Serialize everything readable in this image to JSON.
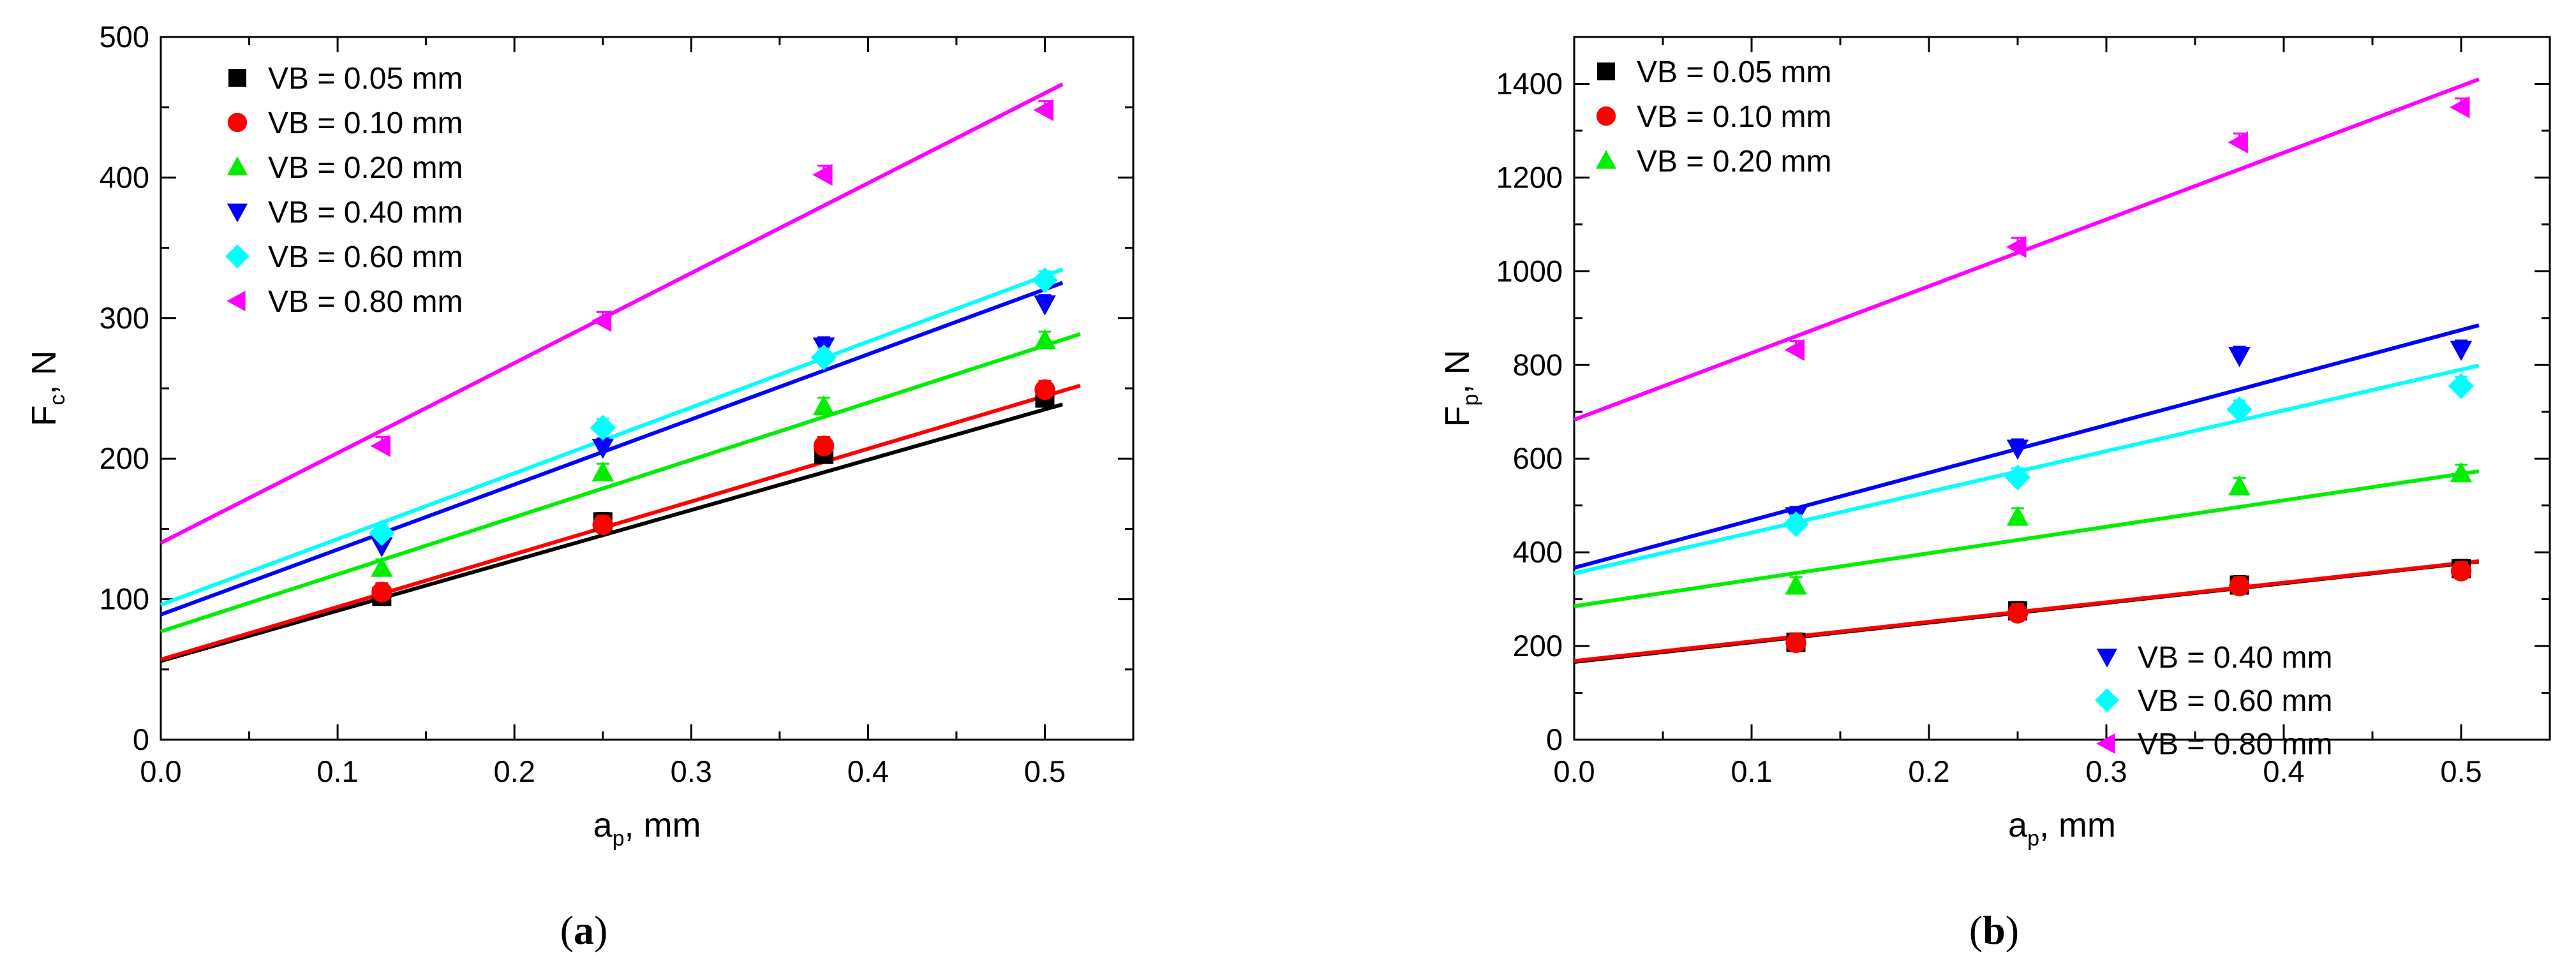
{
  "chart_data": [
    {
      "type": "scatter",
      "panel_label_open": "(",
      "panel_label_letter": "a",
      "panel_label_close": ")",
      "ylabel_main": "F",
      "ylabel_sub": "c",
      "ylabel_unit": ", N",
      "xlabel_main": "a",
      "xlabel_sub": "p",
      "xlabel_unit": ", mm",
      "xlim": [
        0.0,
        0.55
      ],
      "ylim": [
        0,
        500
      ],
      "x_ticks": [
        0.0,
        0.1,
        0.2,
        0.3,
        0.4,
        0.5
      ],
      "x_tick_labels": [
        "0.0",
        "0.1",
        "0.2",
        "0.3",
        "0.4",
        "0.5"
      ],
      "y_ticks": [
        0,
        100,
        200,
        300,
        400,
        500
      ],
      "y_tick_labels": [
        "0",
        "100",
        "200",
        "300",
        "400",
        "500"
      ],
      "grid": false,
      "legend_position": "top-left",
      "x": [
        0.125,
        0.25,
        0.375,
        0.5
      ],
      "series": [
        {
          "name": "VB = 0.05 mm",
          "color": "#000000",
          "marker": "square",
          "values": [
            102,
            155,
            203,
            243
          ],
          "fit": {
            "intercept": 56,
            "slope": 358,
            "x_end": 0.51
          },
          "legend_group": 0
        },
        {
          "name": "VB = 0.10 mm",
          "color": "#ff0000",
          "marker": "circle",
          "values": [
            105,
            153,
            209,
            249
          ],
          "fit": {
            "intercept": 57,
            "slope": 375,
            "x_end": 0.52
          },
          "legend_group": 0
        },
        {
          "name": "VB = 0.20 mm",
          "color": "#00ee00",
          "marker": "triangle-up",
          "values": [
            122,
            190,
            237,
            284
          ],
          "fit": {
            "intercept": 77,
            "slope": 407,
            "x_end": 0.52
          },
          "legend_group": 0
        },
        {
          "name": "VB = 0.40 mm",
          "color": "#0000ff",
          "marker": "triangle-down",
          "values": [
            138,
            208,
            280,
            310
          ],
          "fit": {
            "intercept": 89,
            "slope": 463,
            "x_end": 0.51
          },
          "legend_group": 0
        },
        {
          "name": "VB = 0.60 mm",
          "color": "#00ffff",
          "marker": "diamond",
          "values": [
            147,
            222,
            272,
            327
          ],
          "fit": {
            "intercept": 96,
            "slope": 468,
            "x_end": 0.51
          },
          "legend_group": 0
        },
        {
          "name": "VB = 0.80 mm",
          "color": "#ff00ff",
          "marker": "triangle-left",
          "values": [
            209,
            298,
            402,
            448
          ],
          "fit": {
            "intercept": 140,
            "slope": 640,
            "x_end": 0.51
          },
          "legend_group": 0
        }
      ]
    },
    {
      "type": "scatter",
      "panel_label_open": "(",
      "panel_label_letter": "b",
      "panel_label_close": ")",
      "ylabel_main": "F",
      "ylabel_sub": "p",
      "ylabel_unit": ", N",
      "xlabel_main": "a",
      "xlabel_sub": "p",
      "xlabel_unit": ", mm",
      "xlim": [
        0.0,
        0.55
      ],
      "ylim": [
        0,
        1500
      ],
      "x_ticks": [
        0.0,
        0.1,
        0.2,
        0.3,
        0.4,
        0.5
      ],
      "x_tick_labels": [
        "0.0",
        "0.1",
        "0.2",
        "0.3",
        "0.4",
        "0.5"
      ],
      "y_ticks": [
        0,
        200,
        400,
        600,
        800,
        1000,
        1200,
        1400
      ],
      "y_tick_labels": [
        "0",
        "200",
        "400",
        "600",
        "800",
        "1000",
        "1200",
        "1400"
      ],
      "grid": false,
      "legend_position": "top-left and bottom-right",
      "x": [
        0.125,
        0.25,
        0.375,
        0.5
      ],
      "series": [
        {
          "name": "VB = 0.05 mm",
          "color": "#000000",
          "marker": "square",
          "values": [
            208,
            275,
            330,
            365
          ],
          "fit": {
            "intercept": 166,
            "slope": 420,
            "x_end": 0.51
          },
          "legend_group": 0
        },
        {
          "name": "VB = 0.10 mm",
          "color": "#ff0000",
          "marker": "circle",
          "values": [
            207,
            270,
            328,
            360
          ],
          "fit": {
            "intercept": 168,
            "slope": 418,
            "x_end": 0.51
          },
          "legend_group": 0
        },
        {
          "name": "VB = 0.20 mm",
          "color": "#00ee00",
          "marker": "triangle-up",
          "values": [
            328,
            475,
            540,
            568
          ],
          "fit": {
            "intercept": 285,
            "slope": 565,
            "x_end": 0.51
          },
          "legend_group": 0
        },
        {
          "name": "VB = 0.40 mm",
          "color": "#0000ff",
          "marker": "triangle-down",
          "values": [
            478,
            622,
            820,
            833
          ],
          "fit": {
            "intercept": 367,
            "slope": 1015,
            "x_end": 0.51
          },
          "legend_group": 1
        },
        {
          "name": "VB = 0.60 mm",
          "color": "#00ffff",
          "marker": "diamond",
          "values": [
            460,
            560,
            705,
            755
          ],
          "fit": {
            "intercept": 355,
            "slope": 870,
            "x_end": 0.51
          },
          "legend_group": 1
        },
        {
          "name": "VB = 0.80 mm",
          "color": "#ff00ff",
          "marker": "triangle-left",
          "values": [
            832,
            1052,
            1275,
            1350
          ],
          "fit": {
            "intercept": 683,
            "slope": 1425,
            "x_end": 0.51
          },
          "legend_group": 1
        }
      ]
    }
  ]
}
